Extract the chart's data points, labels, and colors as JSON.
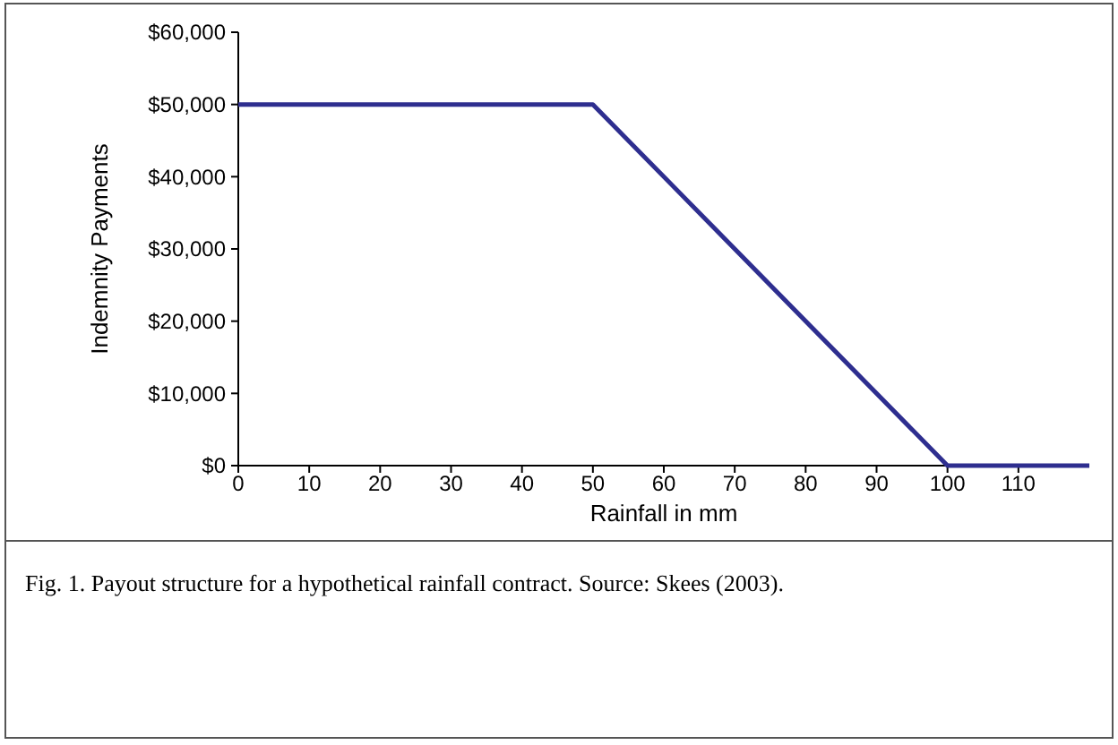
{
  "chart_data": {
    "type": "line",
    "xlabel": "Rainfall in mm",
    "ylabel": "Indemnity Payments",
    "annotations": [
      "Fig. 1.  Payout structure for a hypothetical rainfall contract. Source: Skees (2003)."
    ],
    "x": [
      0,
      50,
      100,
      120
    ],
    "series": [
      {
        "color": "#2e2e8f",
        "values": [
          50000,
          50000,
          0,
          0
        ]
      }
    ],
    "xlim": [
      0,
      120
    ],
    "xticks": [
      0,
      10,
      20,
      30,
      40,
      50,
      60,
      70,
      80,
      90,
      100,
      110
    ],
    "ylim": [
      0,
      60000
    ],
    "yticks": [
      {
        "value": 0,
        "label": "$0"
      },
      {
        "value": 10000,
        "label": "$10,000"
      },
      {
        "value": 20000,
        "label": "$20,000"
      },
      {
        "value": 30000,
        "label": "$30,000"
      },
      {
        "value": 40000,
        "label": "$40,000"
      },
      {
        "value": 50000,
        "label": "$50,000"
      },
      {
        "value": 60000,
        "label": "$60,000"
      }
    ],
    "grid": false,
    "marker": "none",
    "line_style": "solid"
  }
}
